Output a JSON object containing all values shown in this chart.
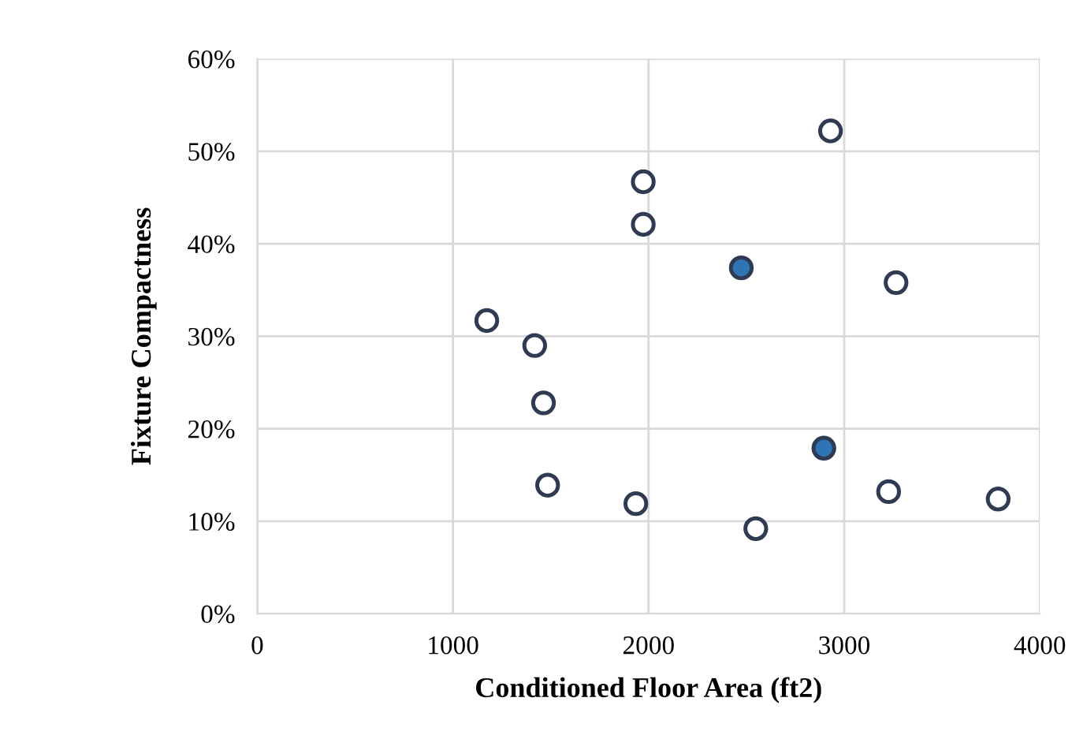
{
  "chart_data": {
    "type": "scatter",
    "xlabel": "Conditioned Floor Area (ft2)",
    "ylabel": "Fixture Compactness",
    "series": [
      {
        "color": "#ffffff",
        "x": [
          1173,
          1418,
          1463,
          1484,
          1935,
          1973,
          1973,
          2548,
          2930,
          3265,
          3227,
          3787
        ],
        "values": [
          31.7,
          29.0,
          22.8,
          13.9,
          11.9,
          46.7,
          42.1,
          9.2,
          52.2,
          35.8,
          13.2,
          12.4
        ]
      },
      {
        "color": "#2e75b6",
        "x": [
          2474,
          2896
        ],
        "values": [
          37.4,
          17.9
        ]
      }
    ],
    "xlim": [
      0,
      4000
    ],
    "xticks": [
      0,
      1000,
      2000,
      3000,
      4000
    ],
    "ylim": [
      0,
      60
    ],
    "yticks": [
      {
        "value": 0,
        "label": "0%"
      },
      {
        "value": 10,
        "label": "10%"
      },
      {
        "value": 20,
        "label": "20%"
      },
      {
        "value": 30,
        "label": "30%"
      },
      {
        "value": 40,
        "label": "40%"
      },
      {
        "value": 50,
        "label": "50%"
      },
      {
        "value": 60,
        "label": "60%"
      }
    ],
    "grid": true,
    "marker": "circle"
  }
}
